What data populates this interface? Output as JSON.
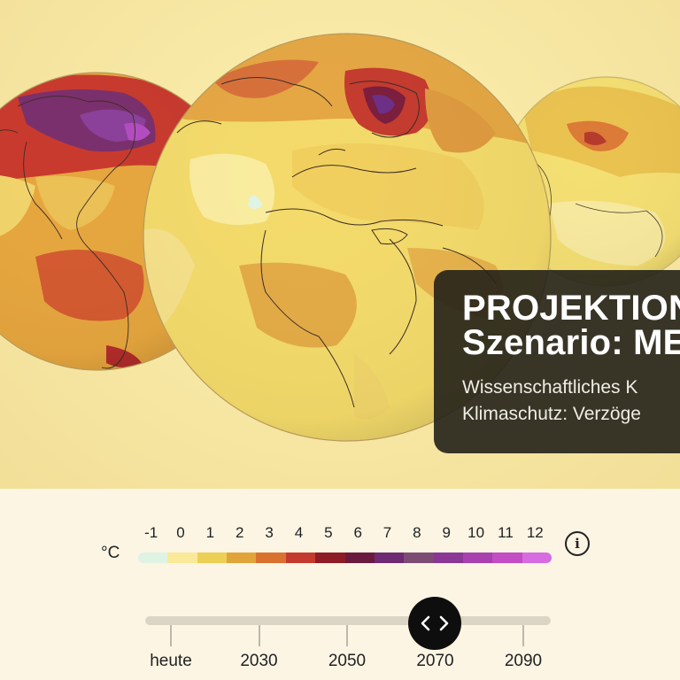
{
  "scenario": {
    "title": "PROJEKTION\nSzenario: MEH",
    "description": "Wissenschaftliches K\nKlimaschutz: Verzöge"
  },
  "legend": {
    "unit": "°C",
    "ticks": [
      "-1",
      "0",
      "1",
      "2",
      "3",
      "4",
      "5",
      "6",
      "7",
      "8",
      "9",
      "10",
      "11",
      "12"
    ],
    "colors": [
      "#dff3e4",
      "#fbe99a",
      "#ecd055",
      "#e0a43a",
      "#d9722f",
      "#c53a2e",
      "#8e1c26",
      "#6b1a3f",
      "#6e2a72",
      "#7d4c74",
      "#8a3795",
      "#a940b0",
      "#c24dc5",
      "#d66ce0"
    ],
    "info_icon": "info-icon"
  },
  "timeline": {
    "labels": [
      "heute",
      "2030",
      "2050",
      "2070",
      "2090"
    ],
    "selected": "2070",
    "handle_icon": "chevron-left-right-icon"
  }
}
